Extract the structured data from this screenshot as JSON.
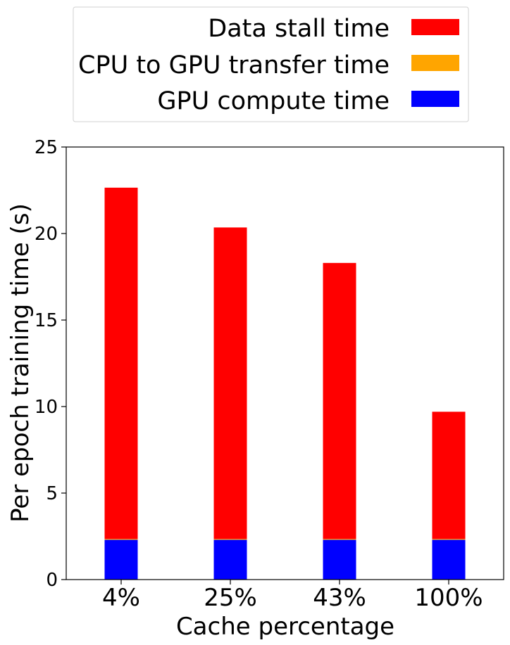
{
  "chart_data": {
    "type": "bar",
    "stacked": true,
    "categories": [
      "4%",
      "25%",
      "43%",
      "100%"
    ],
    "series": [
      {
        "name": "GPU compute time",
        "color": "#0000ff",
        "values": [
          2.3,
          2.3,
          2.3,
          2.3
        ]
      },
      {
        "name": "CPU to GPU transfer time",
        "color": "#ffa500",
        "values": [
          0.05,
          0.05,
          0.05,
          0.05
        ]
      },
      {
        "name": "Data stall time",
        "color": "#ff0000",
        "values": [
          20.3,
          18.0,
          15.95,
          7.35
        ]
      }
    ],
    "xlabel": "Cache percentage",
    "ylabel": "Per epoch training time (s)",
    "ylim": [
      0,
      25
    ],
    "yticks": [
      "0",
      "5",
      "10",
      "15",
      "20",
      "25"
    ],
    "grid": false,
    "legend": {
      "placement": "top-right outside plot",
      "order": [
        "Data stall time",
        "CPU to GPU transfer time",
        "GPU compute time"
      ]
    }
  }
}
